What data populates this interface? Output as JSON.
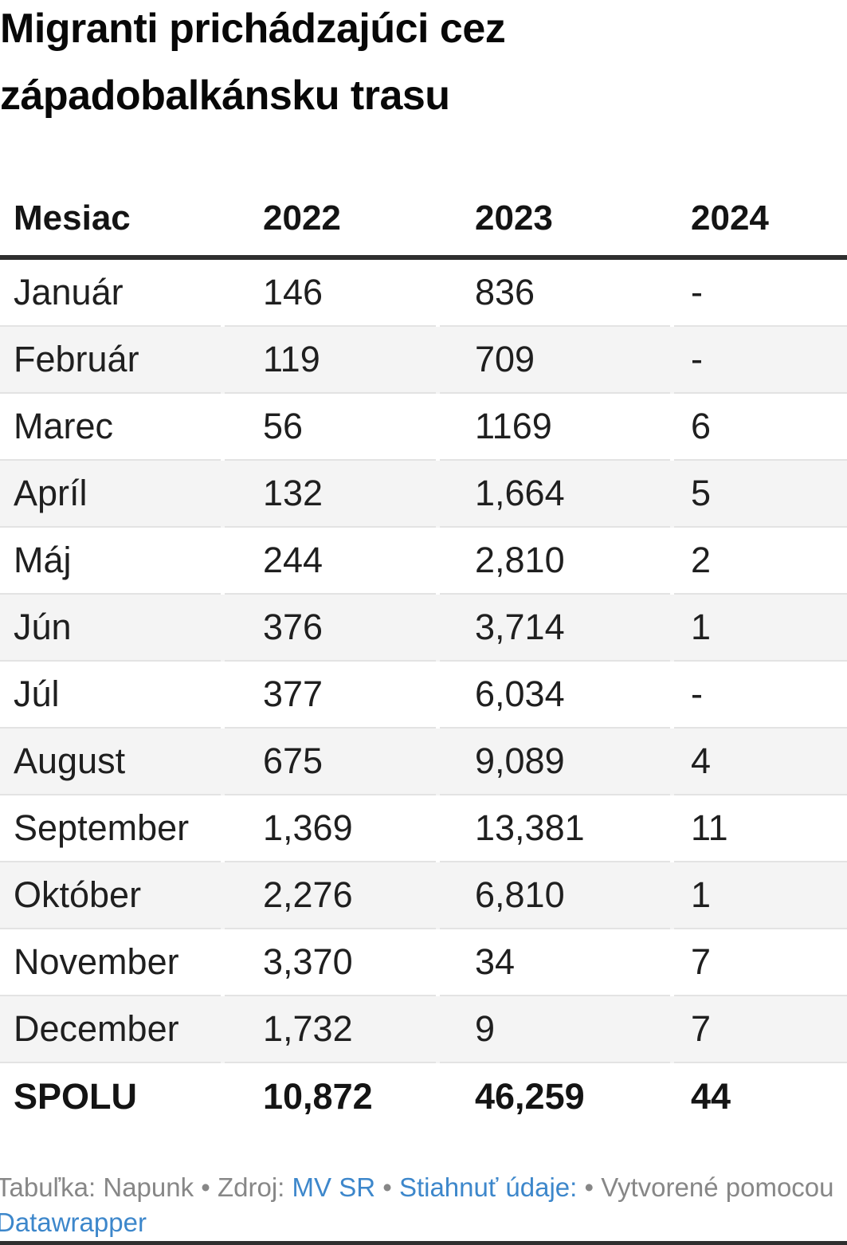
{
  "title": "Migranti prichádzajúci cez západobalkánsku trasu",
  "chart_data": {
    "type": "table",
    "title": "Migranti prichádzajúci cez západobalkánsku trasu",
    "columns": [
      "Mesiac",
      "2022",
      "2023",
      "2024"
    ],
    "categories": [
      "Január",
      "Február",
      "Marec",
      "Apríl",
      "Máj",
      "Jún",
      "Júl",
      "August",
      "September",
      "Október",
      "November",
      "December"
    ],
    "series": [
      {
        "name": "2022",
        "values": [
          146,
          119,
          56,
          132,
          244,
          376,
          377,
          675,
          1369,
          2276,
          3370,
          1732
        ],
        "total": 10872
      },
      {
        "name": "2023",
        "values": [
          836,
          709,
          1169,
          1664,
          2810,
          3714,
          6034,
          9089,
          13381,
          6810,
          34,
          9
        ],
        "total": 46259
      },
      {
        "name": "2024",
        "values": [
          null,
          null,
          6,
          5,
          2,
          1,
          null,
          4,
          11,
          1,
          7,
          7
        ],
        "total": 44
      }
    ],
    "missing_value_placeholder": "-",
    "display_rows": [
      [
        "Január",
        "146",
        "836",
        "-"
      ],
      [
        "Február",
        "119",
        "709",
        "-"
      ],
      [
        "Marec",
        "56",
        "1169",
        "6"
      ],
      [
        "Apríl",
        "132",
        "1,664",
        "5"
      ],
      [
        "Máj",
        "244",
        "2,810",
        "2"
      ],
      [
        "Jún",
        "376",
        "3,714",
        "1"
      ],
      [
        "Júl",
        "377",
        "6,034",
        "-"
      ],
      [
        "August",
        "675",
        "9,089",
        "4"
      ],
      [
        "September",
        "1,369",
        "13,381",
        "11"
      ],
      [
        "Október",
        "2,276",
        "6,810",
        "1"
      ],
      [
        "November",
        "3,370",
        "34",
        "7"
      ],
      [
        "December",
        "1,732",
        "9",
        "7"
      ]
    ],
    "total_row": [
      "SPOLU",
      "10,872",
      "46,259",
      "44"
    ],
    "layout_hints": {
      "zebra_striping": true,
      "header_rule": "thick-dark",
      "alignment": "left"
    }
  },
  "footer": {
    "prefix": "Tabuľka: Napunk • Zdroj: ",
    "source_link": "MV SR",
    "sep1": " • ",
    "download_link": "Stiahnuť údaje:",
    "sep2": " • ",
    "created_with": "Vytvorené pomocou ",
    "datawrapper_link": "Datawrapper"
  },
  "colors": {
    "title_text": "#080808",
    "body_text": "#1f1f1f",
    "header_rule": "#2f2f2f",
    "row_alt_background": "#f4f4f4",
    "row_separator": "#e3e3e3",
    "footer_text": "#878787",
    "link_blue": "#3d87cb",
    "bottom_bar": "#2f2f2f"
  }
}
